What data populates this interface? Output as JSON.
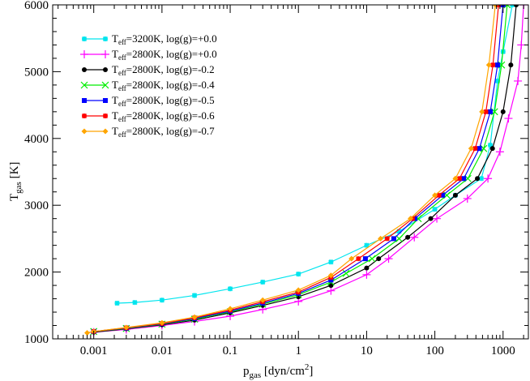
{
  "chart_data": {
    "type": "line",
    "title": "",
    "xlabel": {
      "main": "p",
      "sub": "gas",
      "rest": " [dyn/cm",
      "sup": "2",
      "end": "]"
    },
    "ylabel": {
      "main": "T",
      "sub": "gas",
      "rest": " [K]"
    },
    "xscale": "log",
    "xlim": [
      0.00025,
      2350
    ],
    "ylim": [
      1000,
      6000
    ],
    "xticks": [
      0.001,
      0.01,
      0.1,
      1,
      10,
      100,
      1000
    ],
    "xtick_labels": [
      "0.001",
      "0.01",
      "0.1",
      "1",
      "10",
      "100",
      "1000"
    ],
    "yticks": [
      1000,
      2000,
      3000,
      4000,
      5000,
      6000
    ],
    "ytick_labels": [
      "1000",
      "2000",
      "3000",
      "4000",
      "5000",
      "6000"
    ],
    "grid": false,
    "legend_position": "top-left",
    "series": [
      {
        "name": "Teff=3200K, log(g)=+0.0",
        "label": {
          "pre": "T",
          "sub": "eff",
          "post": "=3200K, log(g)=+0.0"
        },
        "color": "#00e5ee",
        "marker": "star",
        "points": [
          [
            0.0022,
            1534
          ],
          [
            0.004,
            1545
          ],
          [
            0.01,
            1580
          ],
          [
            0.03,
            1650
          ],
          [
            0.1,
            1750
          ],
          [
            0.3,
            1850
          ],
          [
            1,
            1970
          ],
          [
            3,
            2150
          ],
          [
            10,
            2400
          ],
          [
            30,
            2610
          ],
          [
            100,
            2940
          ],
          [
            200,
            3150
          ],
          [
            480,
            3400
          ],
          [
            650,
            3900
          ],
          [
            830,
            4860
          ],
          [
            1000,
            5300
          ],
          [
            1370,
            6000
          ]
        ]
      },
      {
        "name": "Teff=2800K, log(g)=+0.0",
        "label": {
          "pre": "T",
          "sub": "eff",
          "post": "=2800K, log(g)=+0.0"
        },
        "color": "#ff00ff",
        "marker": "plus",
        "points": [
          [
            0.001,
            1100
          ],
          [
            0.003,
            1140
          ],
          [
            0.01,
            1200
          ],
          [
            0.03,
            1260
          ],
          [
            0.1,
            1340
          ],
          [
            0.3,
            1440
          ],
          [
            1,
            1560
          ],
          [
            3,
            1720
          ],
          [
            10,
            1960
          ],
          [
            21,
            2200
          ],
          [
            50,
            2520
          ],
          [
            107,
            2800
          ],
          [
            300,
            3100
          ],
          [
            600,
            3400
          ],
          [
            900,
            3800
          ],
          [
            1200,
            4300
          ],
          [
            1650,
            4860
          ],
          [
            1850,
            5400
          ],
          [
            2000,
            6000
          ]
        ]
      },
      {
        "name": "Teff=2800K, log(g)=-0.2",
        "label": {
          "pre": "T",
          "sub": "eff",
          "post": "=2800K, log(g)=-0.2"
        },
        "color": "#000000",
        "marker": "circle",
        "points": [
          [
            0.001,
            1100
          ],
          [
            0.003,
            1150
          ],
          [
            0.01,
            1210
          ],
          [
            0.03,
            1280
          ],
          [
            0.1,
            1390
          ],
          [
            0.3,
            1500
          ],
          [
            1,
            1630
          ],
          [
            3,
            1800
          ],
          [
            10,
            2060
          ],
          [
            15,
            2200
          ],
          [
            40,
            2520
          ],
          [
            87,
            2800
          ],
          [
            200,
            3150
          ],
          [
            420,
            3400
          ],
          [
            700,
            3850
          ],
          [
            1000,
            4400
          ],
          [
            1300,
            5100
          ],
          [
            1560,
            6000
          ]
        ]
      },
      {
        "name": "Teff=2800K, log(g)=-0.4",
        "label": {
          "pre": "T",
          "sub": "eff",
          "post": "=2800K, log(g)=-0.4"
        },
        "color": "#00ee00",
        "marker": "x",
        "points": [
          [
            0.001,
            1110
          ],
          [
            0.003,
            1155
          ],
          [
            0.01,
            1220
          ],
          [
            0.03,
            1295
          ],
          [
            0.1,
            1405
          ],
          [
            0.3,
            1520
          ],
          [
            1,
            1660
          ],
          [
            3,
            1850
          ],
          [
            5,
            1980
          ],
          [
            12,
            2200
          ],
          [
            30,
            2500
          ],
          [
            57,
            2800
          ],
          [
            150,
            3150
          ],
          [
            305,
            3400
          ],
          [
            520,
            3850
          ],
          [
            750,
            4400
          ],
          [
            950,
            5100
          ],
          [
            1150,
            6000
          ]
        ]
      },
      {
        "name": "Teff=2800K, log(g)=-0.5",
        "label": {
          "pre": "T",
          "sub": "eff",
          "post": "=2800K, log(g)=-0.5"
        },
        "color": "#0000ff",
        "marker": "square",
        "points": [
          [
            0.001,
            1110
          ],
          [
            0.003,
            1160
          ],
          [
            0.01,
            1225
          ],
          [
            0.03,
            1305
          ],
          [
            0.1,
            1415
          ],
          [
            0.3,
            1535
          ],
          [
            1,
            1680
          ],
          [
            3,
            1880
          ],
          [
            9.6,
            2200
          ],
          [
            25,
            2500
          ],
          [
            51,
            2800
          ],
          [
            130,
            3150
          ],
          [
            265,
            3400
          ],
          [
            450,
            3850
          ],
          [
            650,
            4400
          ],
          [
            830,
            5100
          ],
          [
            1000,
            6000
          ]
        ]
      },
      {
        "name": "Teff=2800K, log(g)=-0.6",
        "label": {
          "pre": "T",
          "sub": "eff",
          "post": "=2800K, log(g)=-0.6"
        },
        "color": "#ff0000",
        "marker": "star",
        "points": [
          [
            0.001,
            1110
          ],
          [
            0.003,
            1165
          ],
          [
            0.01,
            1230
          ],
          [
            0.03,
            1315
          ],
          [
            0.1,
            1430
          ],
          [
            0.3,
            1555
          ],
          [
            1,
            1700
          ],
          [
            3,
            1920
          ],
          [
            7.6,
            2200
          ],
          [
            20,
            2500
          ],
          [
            47,
            2800
          ],
          [
            115,
            3150
          ],
          [
            230,
            3400
          ],
          [
            390,
            3850
          ],
          [
            560,
            4400
          ],
          [
            710,
            5100
          ],
          [
            860,
            6000
          ]
        ]
      },
      {
        "name": "Teff=2800K, log(g)=-0.7",
        "label": {
          "pre": "T",
          "sub": "eff",
          "post": "=2800K, log(g)=-0.7"
        },
        "color": "#ffa500",
        "marker": "diamond",
        "points": [
          [
            0.0008,
            1090
          ],
          [
            0.001,
            1110
          ],
          [
            0.003,
            1170
          ],
          [
            0.01,
            1240
          ],
          [
            0.03,
            1325
          ],
          [
            0.1,
            1450
          ],
          [
            0.3,
            1580
          ],
          [
            1,
            1730
          ],
          [
            3,
            1950
          ],
          [
            6,
            2200
          ],
          [
            16,
            2500
          ],
          [
            44,
            2800
          ],
          [
            100,
            3150
          ],
          [
            200,
            3400
          ],
          [
            340,
            3850
          ],
          [
            490,
            4400
          ],
          [
            620,
            5100
          ],
          [
            770,
            6000
          ]
        ]
      }
    ]
  }
}
